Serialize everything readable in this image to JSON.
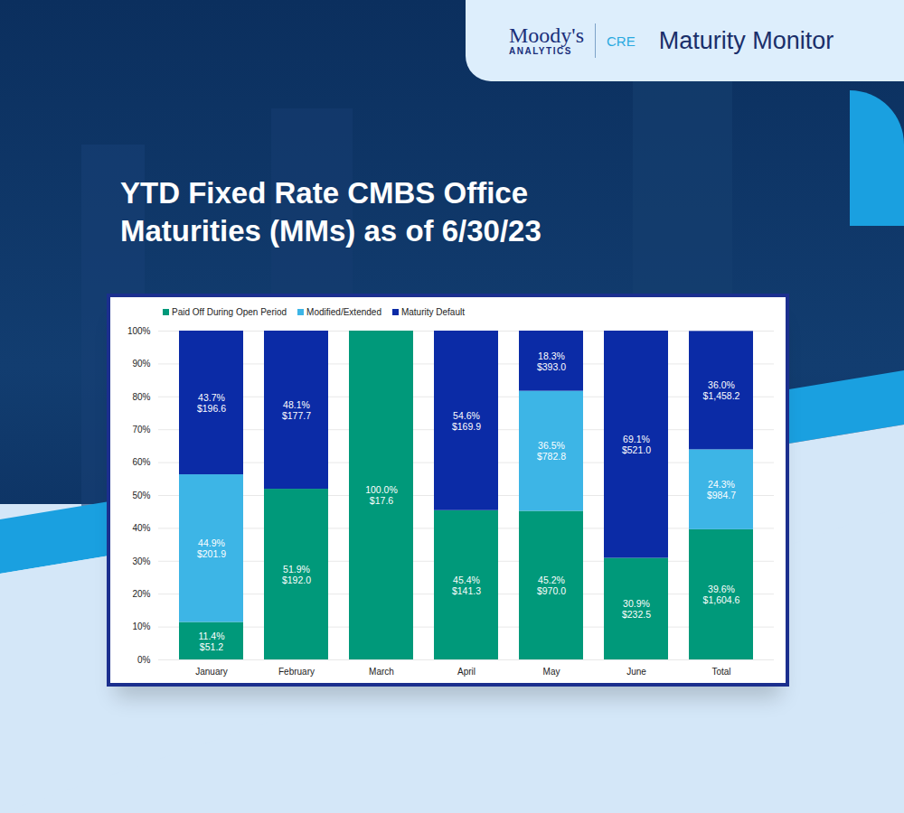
{
  "header": {
    "brand": "Moody's",
    "brand_sub": "ANALYTICS",
    "section": "CRE",
    "product": "Maturity Monitor"
  },
  "chart_data": {
    "type": "bar",
    "title": "YTD Fixed Rate CMBS Office Maturities (MMs) as of 6/30/23",
    "stacked": true,
    "data_labels": true,
    "grid": true,
    "legend": "top",
    "categories": [
      "January",
      "February",
      "March",
      "April",
      "May",
      "June",
      "Total"
    ],
    "series": [
      {
        "name": "Paid Off During Open Period",
        "color": "#00997a",
        "values": [
          11.4,
          51.9,
          100.0,
          45.4,
          45.2,
          30.9,
          39.6
        ],
        "value_labels": [
          "11.4%",
          "51.9%",
          "100.0%",
          "45.4%",
          "45.2%",
          "30.9%",
          "39.6%"
        ],
        "amount_labels": [
          "$51.2",
          "$192.0",
          "$17.6",
          "$141.3",
          "$970.0",
          "$232.5",
          "$1,604.6"
        ]
      },
      {
        "name": "Modified/Extended",
        "color": "#3db5e6",
        "values": [
          44.9,
          0,
          0,
          0,
          36.5,
          0,
          24.3
        ],
        "value_labels": [
          "44.9%",
          null,
          null,
          null,
          "36.5%",
          null,
          "24.3%"
        ],
        "amount_labels": [
          "$201.9",
          null,
          null,
          null,
          "$782.8",
          null,
          "$984.7"
        ]
      },
      {
        "name": "Maturity Default",
        "color": "#0b2ba6",
        "values": [
          43.7,
          48.1,
          0,
          54.6,
          18.3,
          69.1,
          36.0
        ],
        "value_labels": [
          "43.7%",
          "48.1%",
          null,
          "54.6%",
          "18.3%",
          "69.1%",
          "36.0%"
        ],
        "amount_labels": [
          "$196.6",
          "$177.7",
          null,
          "$169.9",
          "$393.0",
          "$521.0",
          "$1,458.2"
        ]
      }
    ],
    "ylim": [
      0,
      100
    ],
    "yticks": [
      {
        "value": 0,
        "label": "0%"
      },
      {
        "value": 10,
        "label": "10%"
      },
      {
        "value": 20,
        "label": "20%"
      },
      {
        "value": 30,
        "label": "30%"
      },
      {
        "value": 40,
        "label": "40%"
      },
      {
        "value": 50,
        "label": "50%"
      },
      {
        "value": 60,
        "label": "60%"
      },
      {
        "value": 70,
        "label": "70%"
      },
      {
        "value": 80,
        "label": "80%"
      },
      {
        "value": 90,
        "label": "90%"
      },
      {
        "value": 100,
        "label": "100%"
      }
    ]
  }
}
